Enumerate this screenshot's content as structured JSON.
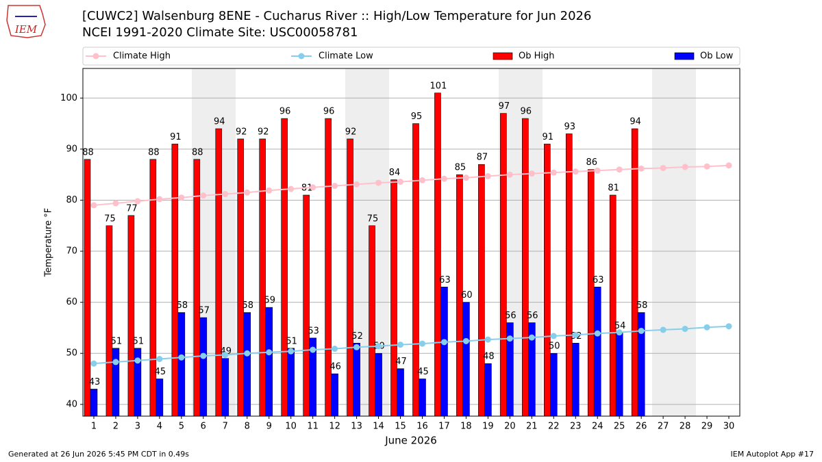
{
  "chart_data": {
    "type": "bar",
    "title": "[CUWC2] Walsenburg 8ENE - Cucharus River :: High/Low Temperature for Jun 2026",
    "subtitle": "NCEI 1991-2020 Climate Site: USC00058781",
    "x_label": "June 2026",
    "y_label": "Temperature °F",
    "footer_left": "Generated at 26 Jun 2026 5:45 PM CDT in 0.49s",
    "footer_right": "IEM Autoplot App #17",
    "logo_text": "IEM",
    "x": [
      1,
      2,
      3,
      4,
      5,
      6,
      7,
      8,
      9,
      10,
      11,
      12,
      13,
      14,
      15,
      16,
      17,
      18,
      19,
      20,
      21,
      22,
      23,
      24,
      25,
      26,
      27,
      28,
      29,
      30
    ],
    "xlim": [
      0.5,
      30.5
    ],
    "xticks": [
      1,
      2,
      3,
      4,
      5,
      6,
      7,
      8,
      9,
      10,
      11,
      12,
      13,
      14,
      15,
      16,
      17,
      18,
      19,
      20,
      21,
      22,
      23,
      24,
      25,
      26,
      27,
      28,
      29,
      30
    ],
    "ylim": [
      37.7,
      105.8
    ],
    "yticks": [
      40,
      50,
      60,
      70,
      80,
      90,
      100
    ],
    "grid": true,
    "series": [
      {
        "name": "Climate High",
        "type": "line",
        "color": "#ffc0cb",
        "values": [
          79.0,
          79.4,
          79.8,
          80.2,
          80.5,
          80.9,
          81.2,
          81.5,
          81.9,
          82.2,
          82.5,
          82.8,
          83.1,
          83.4,
          83.6,
          83.9,
          84.2,
          84.4,
          84.7,
          85.0,
          85.2,
          85.4,
          85.6,
          85.8,
          86.0,
          86.2,
          86.3,
          86.5,
          86.6,
          86.8
        ]
      },
      {
        "name": "Climate Low",
        "type": "line",
        "color": "#87ceeb",
        "values": [
          48.0,
          48.3,
          48.6,
          48.9,
          49.2,
          49.5,
          49.7,
          50.0,
          50.2,
          50.4,
          50.7,
          50.9,
          51.2,
          51.4,
          51.7,
          51.9,
          52.2,
          52.4,
          52.7,
          52.9,
          53.1,
          53.4,
          53.6,
          53.9,
          54.1,
          54.4,
          54.6,
          54.8,
          55.1,
          55.3
        ]
      },
      {
        "name": "Ob High",
        "type": "bar",
        "color": "#ff0000",
        "values": [
          88,
          75,
          77,
          88,
          91,
          88,
          94,
          92,
          92,
          96,
          81,
          96,
          92,
          75,
          84,
          95,
          101,
          85,
          87,
          97,
          96,
          91,
          93,
          86,
          81,
          94,
          null,
          null,
          null,
          null
        ]
      },
      {
        "name": "Ob Low",
        "type": "bar",
        "color": "#0000ff",
        "values": [
          43,
          51,
          51,
          45,
          58,
          57,
          49,
          58,
          59,
          51,
          53,
          46,
          52,
          50,
          47,
          45,
          63,
          60,
          48,
          56,
          56,
          50,
          52,
          63,
          54,
          58,
          null,
          null,
          null,
          null
        ]
      }
    ]
  }
}
